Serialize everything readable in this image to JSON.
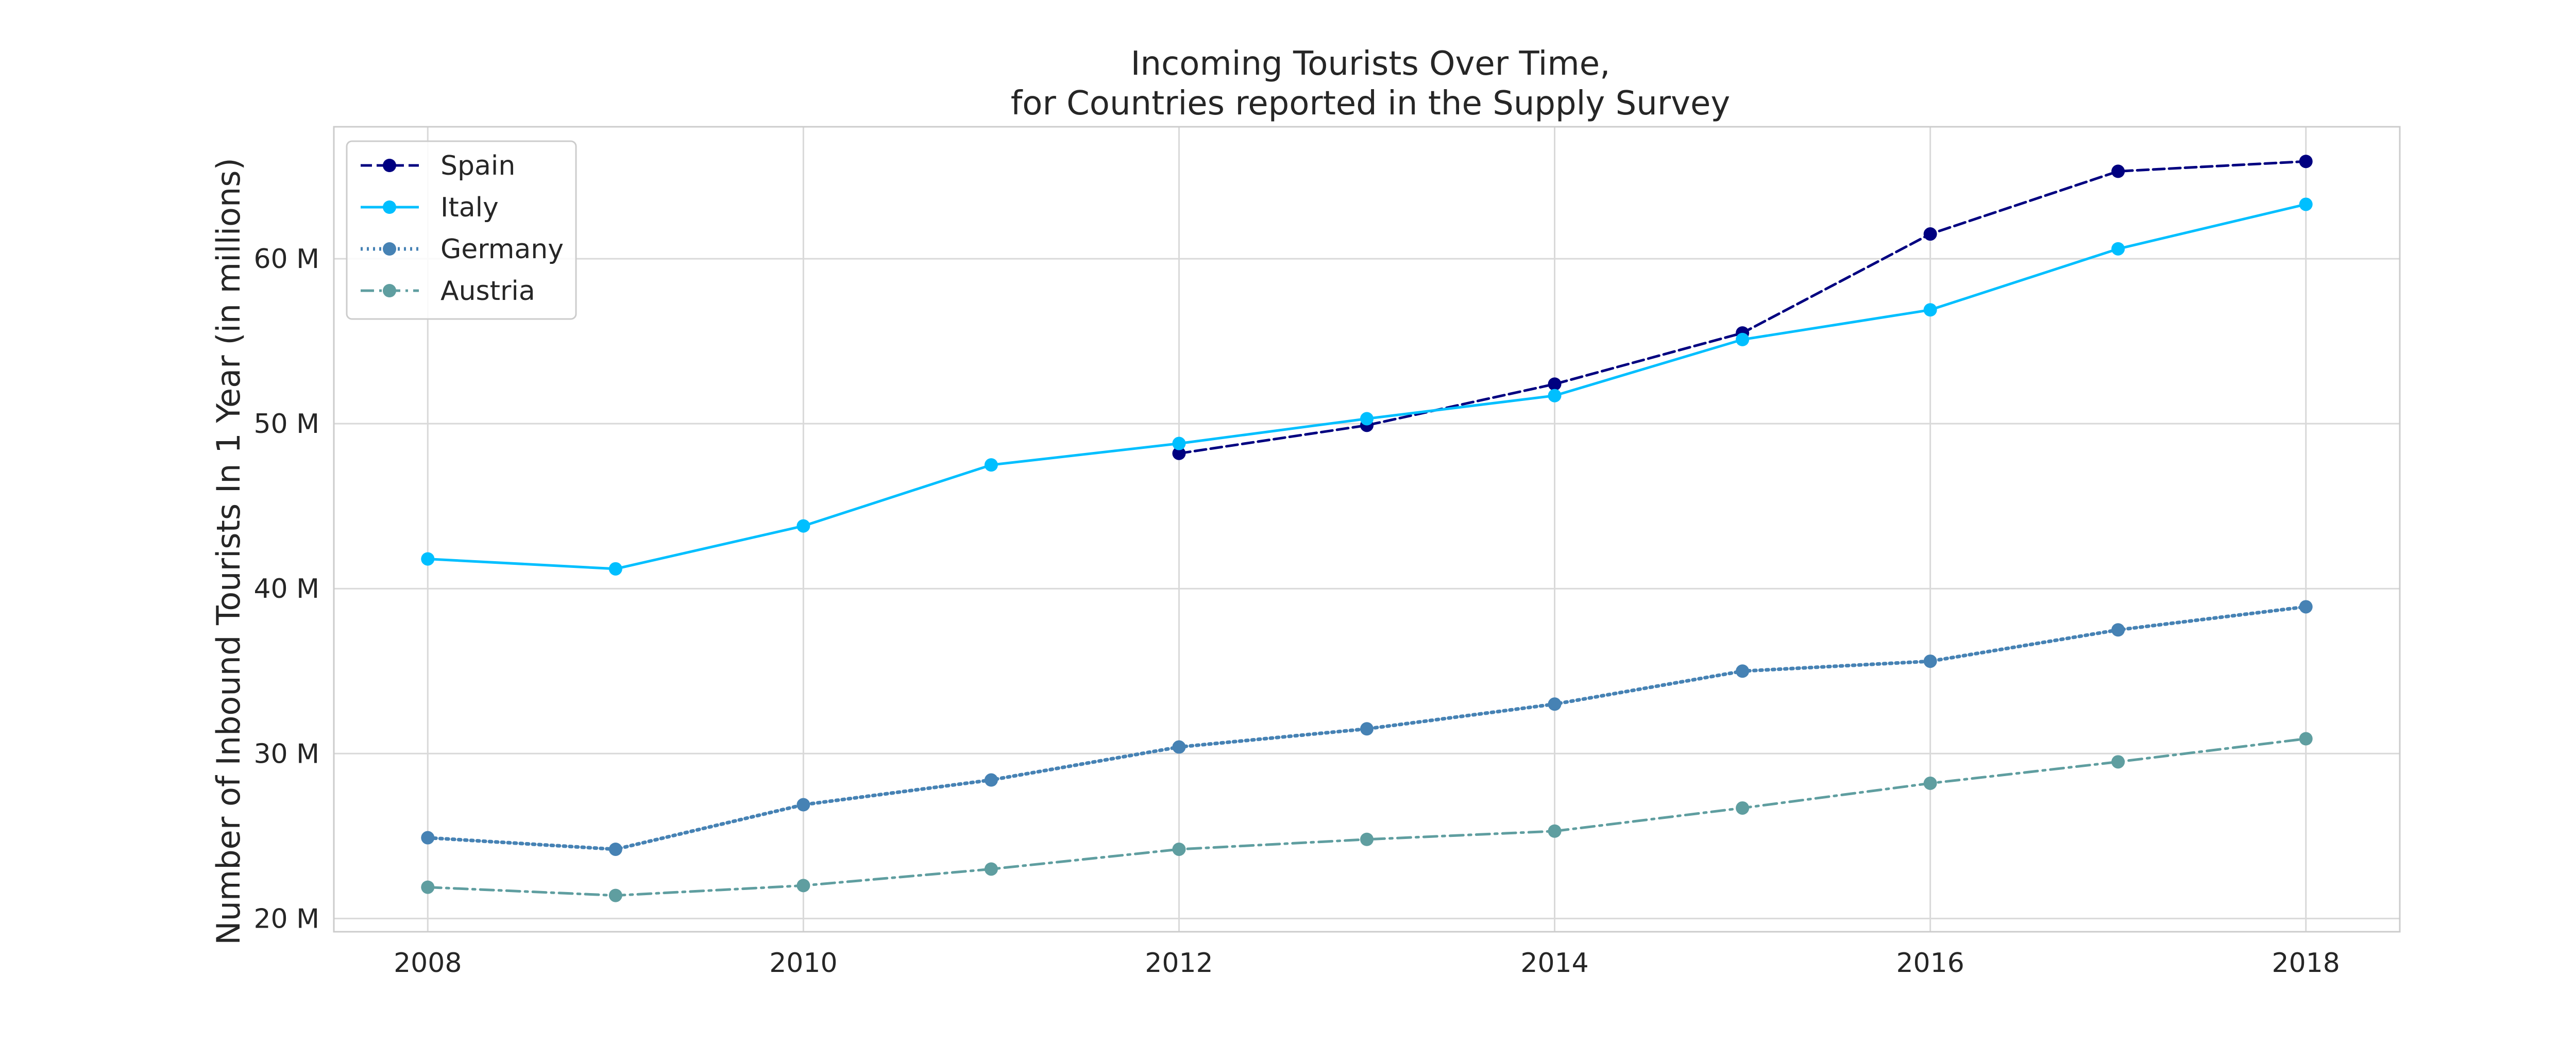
{
  "chart_data": {
    "type": "line",
    "title_lines": [
      "Incoming Tourists Over Time,",
      "for Countries reported in the Supply Survey"
    ],
    "xlabel": "",
    "ylabel": "Number of Inbound Tourists In 1 Year (in millions)",
    "xlim": [
      2007.5,
      2018.5
    ],
    "ylim": [
      19.2,
      68.0
    ],
    "x_ticks": [
      2008,
      2010,
      2012,
      2014,
      2016,
      2018
    ],
    "x_tick_labels": [
      "2008",
      "2010",
      "2012",
      "2014",
      "2016",
      "2018"
    ],
    "y_ticks": [
      20,
      30,
      40,
      50,
      60
    ],
    "y_tick_labels": [
      "20 M",
      "30 M",
      "40 M",
      "50 M",
      "60 M"
    ],
    "grid": true,
    "legend_position": "top-left",
    "series": [
      {
        "name": "Spain",
        "color": "#000080",
        "linestyle": "dashed",
        "x": [
          2012,
          2013,
          2014,
          2015,
          2016,
          2017,
          2018
        ],
        "values": [
          48.2,
          49.9,
          52.4,
          55.5,
          61.5,
          65.3,
          65.9
        ]
      },
      {
        "name": "Italy",
        "color": "#00bfff",
        "linestyle": "solid",
        "x": [
          2008,
          2009,
          2010,
          2011,
          2012,
          2013,
          2014,
          2015,
          2016,
          2017,
          2018
        ],
        "values": [
          41.8,
          41.2,
          43.8,
          47.5,
          48.8,
          50.3,
          51.7,
          55.1,
          56.9,
          60.6,
          63.3
        ]
      },
      {
        "name": "Germany",
        "color": "#4682b4",
        "linestyle": "dotted",
        "x": [
          2008,
          2009,
          2010,
          2011,
          2012,
          2013,
          2014,
          2015,
          2016,
          2017,
          2018
        ],
        "values": [
          24.9,
          24.2,
          26.9,
          28.4,
          30.4,
          31.5,
          33.0,
          35.0,
          35.6,
          37.5,
          38.9
        ]
      },
      {
        "name": "Austria",
        "color": "#5f9ea0",
        "linestyle": "dashdot",
        "x": [
          2008,
          2009,
          2010,
          2011,
          2012,
          2013,
          2014,
          2015,
          2016,
          2017,
          2018
        ],
        "values": [
          21.9,
          21.4,
          22.0,
          23.0,
          24.2,
          24.8,
          25.3,
          26.7,
          28.2,
          29.5,
          30.9
        ]
      }
    ]
  }
}
